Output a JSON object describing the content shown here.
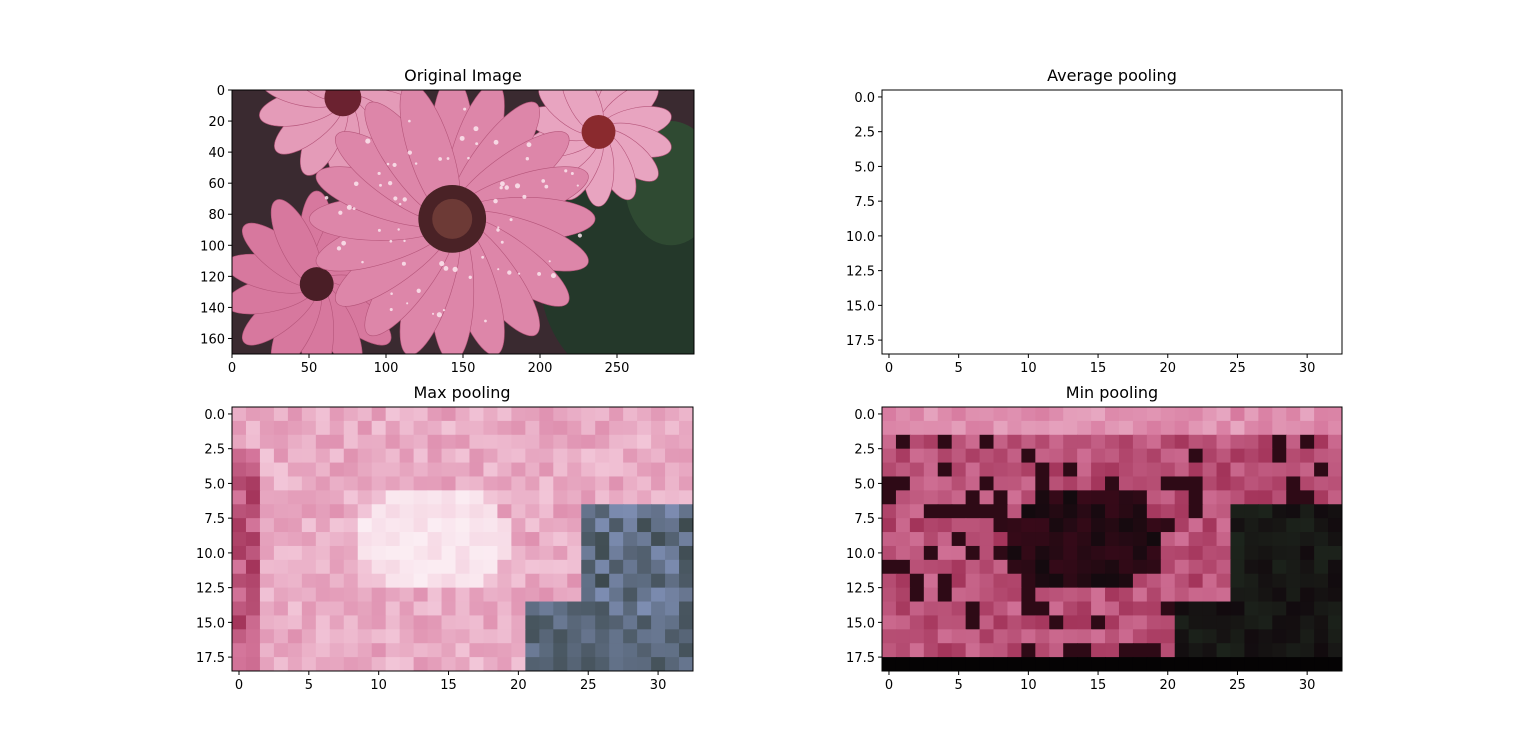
{
  "colors": {
    "pink_light": "#f2c6d8",
    "pink_mid": "#d77a9f",
    "pink_deep": "#a3345a",
    "dark_red": "#4a0a1e",
    "near_black": "#120a0e",
    "dark_green": "#1f2a1f",
    "slate_blue": "#7f8fb5",
    "axis": "#000000",
    "background": "#ffffff"
  },
  "chart_data": [
    {
      "type": "heatmap",
      "title": "Original Image",
      "xlabel": "",
      "ylabel": "",
      "xlim": [
        0,
        300
      ],
      "ylim": [
        170,
        0
      ],
      "x_ticks": [
        "0",
        "50",
        "100",
        "150",
        "200",
        "250"
      ],
      "x_tick_values": [
        0,
        50,
        100,
        150,
        200,
        250
      ],
      "y_ticks": [
        "0",
        "20",
        "40",
        "60",
        "80",
        "100",
        "120",
        "140",
        "160"
      ],
      "y_tick_values": [
        0,
        20,
        40,
        60,
        80,
        100,
        120,
        140,
        160
      ],
      "content": "photo",
      "cols": 300,
      "rows": 170
    },
    {
      "type": "heatmap",
      "title": "Average pooling",
      "xlabel": "",
      "ylabel": "",
      "xlim": [
        -0.5,
        32.5
      ],
      "ylim": [
        18.5,
        -0.5
      ],
      "x_ticks": [
        "0",
        "5",
        "10",
        "15",
        "20",
        "25",
        "30"
      ],
      "x_tick_values": [
        0,
        5,
        10,
        15,
        20,
        25,
        30
      ],
      "y_ticks": [
        "0.0",
        "2.5",
        "5.0",
        "7.5",
        "10.0",
        "12.5",
        "15.0",
        "17.5"
      ],
      "y_tick_values": [
        0,
        2.5,
        5,
        7.5,
        10,
        12.5,
        15,
        17.5
      ],
      "content": "blank",
      "cols": 33,
      "rows": 19
    },
    {
      "type": "heatmap",
      "title": "Max pooling",
      "xlabel": "",
      "ylabel": "",
      "xlim": [
        -0.5,
        32.5
      ],
      "ylim": [
        18.5,
        -0.5
      ],
      "x_ticks": [
        "0",
        "5",
        "10",
        "15",
        "20",
        "25",
        "30"
      ],
      "x_tick_values": [
        0,
        5,
        10,
        15,
        20,
        25,
        30
      ],
      "y_ticks": [
        "0.0",
        "2.5",
        "5.0",
        "7.5",
        "10.0",
        "12.5",
        "15.0",
        "17.5"
      ],
      "y_tick_values": [
        0,
        2.5,
        5,
        7.5,
        10,
        12.5,
        15,
        17.5
      ],
      "content": "max",
      "cols": 33,
      "rows": 19
    },
    {
      "type": "heatmap",
      "title": "Min pooling",
      "xlabel": "",
      "ylabel": "",
      "xlim": [
        -0.5,
        32.5
      ],
      "ylim": [
        18.5,
        -0.5
      ],
      "x_ticks": [
        "0",
        "5",
        "10",
        "15",
        "20",
        "25",
        "30"
      ],
      "x_tick_values": [
        0,
        5,
        10,
        15,
        20,
        25,
        30
      ],
      "y_ticks": [
        "0.0",
        "2.5",
        "5.0",
        "7.5",
        "10.0",
        "12.5",
        "15.0",
        "17.5"
      ],
      "y_tick_values": [
        0,
        2.5,
        5,
        7.5,
        10,
        12.5,
        15,
        17.5
      ],
      "content": "min",
      "cols": 33,
      "rows": 19
    }
  ]
}
